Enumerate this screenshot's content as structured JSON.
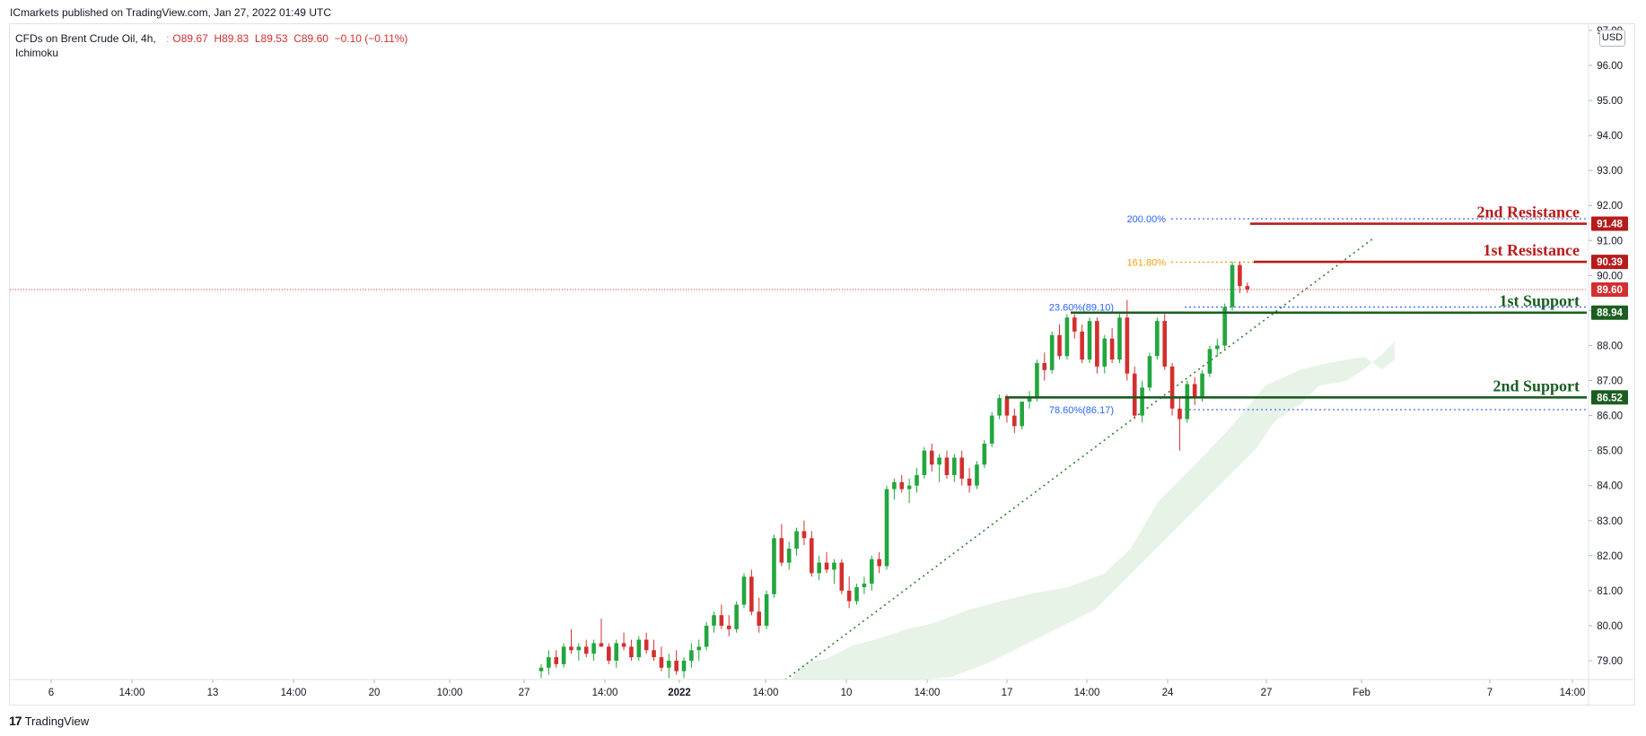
{
  "header": {
    "published": "ICmarkets published on TradingView.com, Jan 27, 2022 01:49 UTC"
  },
  "legend": {
    "symbol_line1": "CFDs on Brent Crude Oil, 4h,",
    "symbol_line2": "Ichimoku",
    "open": "O89.67",
    "high": "H89.83",
    "low": "L89.53",
    "close": "C89.60",
    "change": "−0.10 (−0.11%)"
  },
  "currency": "USD",
  "footer": {
    "brand": "TradingView",
    "logo_text": "17"
  },
  "colors": {
    "up": "#22a63e",
    "down": "#d32f2f",
    "resistance": "#b71c1c",
    "support": "#1b5e20",
    "fib_blue": "#2962ff",
    "fib_orange": "#f59e0b",
    "cloud": "#e6f3e6",
    "trendline": "#2e7d32"
  },
  "chart_data": {
    "type": "candlestick",
    "x_tick_labels": [
      "6",
      "14:00",
      "13",
      "14:00",
      "20",
      "10:00",
      "27",
      "14:00",
      "2022",
      "14:00",
      "10",
      "14:00",
      "17",
      "14:00",
      "24",
      "27",
      "Feb",
      "7",
      "14:00"
    ],
    "y_tick_labels": [
      "79.00",
      "80.00",
      "81.00",
      "82.00",
      "83.00",
      "84.00",
      "85.00",
      "86.00",
      "87.00",
      "88.00",
      "89.00",
      "90.00",
      "91.00",
      "92.00",
      "93.00",
      "94.00",
      "95.00",
      "96.00",
      "97.00"
    ],
    "ylim": [
      78.5,
      97.2
    ],
    "last_price": 89.6,
    "last_price_label": "89.60",
    "levels": [
      {
        "name": "2nd Resistance",
        "value": 91.48,
        "label": "91.48",
        "kind": "resistance"
      },
      {
        "name": "1st Resistance",
        "value": 90.39,
        "label": "90.39",
        "kind": "resistance"
      },
      {
        "name": "1st Support",
        "value": 88.94,
        "label": "88.94",
        "kind": "support"
      },
      {
        "name": "2nd Support",
        "value": 86.52,
        "label": "86.52",
        "kind": "support"
      }
    ],
    "fib_levels": [
      {
        "label": "200.00%",
        "value": 91.62,
        "color": "blue"
      },
      {
        "label": "161.80%",
        "value": 90.38,
        "color": "orange"
      },
      {
        "label": "23.60%(89.10)",
        "value": 89.1,
        "color": "blue"
      },
      {
        "label": "78.60%(86.17)",
        "value": 86.17,
        "color": "blue"
      }
    ],
    "candles": [
      [
        78.7,
        78.9,
        78.5,
        78.8
      ],
      [
        78.8,
        79.3,
        78.6,
        79.1
      ],
      [
        79.1,
        79.3,
        78.8,
        78.9
      ],
      [
        78.9,
        79.5,
        78.8,
        79.4
      ],
      [
        79.4,
        79.9,
        79.2,
        79.3
      ],
      [
        79.3,
        79.5,
        79.0,
        79.4
      ],
      [
        79.4,
        79.6,
        79.1,
        79.2
      ],
      [
        79.2,
        79.6,
        79.0,
        79.5
      ],
      [
        79.5,
        80.2,
        79.4,
        79.4
      ],
      [
        79.4,
        79.5,
        78.9,
        79.0
      ],
      [
        79.0,
        79.6,
        78.8,
        79.5
      ],
      [
        79.5,
        79.8,
        79.3,
        79.4
      ],
      [
        79.4,
        79.6,
        79.0,
        79.1
      ],
      [
        79.1,
        79.7,
        79.0,
        79.6
      ],
      [
        79.6,
        79.8,
        79.2,
        79.3
      ],
      [
        79.3,
        79.6,
        79.0,
        79.1
      ],
      [
        79.1,
        79.4,
        78.7,
        78.8
      ],
      [
        78.8,
        79.2,
        78.5,
        79.0
      ],
      [
        79.0,
        79.3,
        78.6,
        78.7
      ],
      [
        78.7,
        79.1,
        78.5,
        79.0
      ],
      [
        79.0,
        79.5,
        78.8,
        79.3
      ],
      [
        79.3,
        79.6,
        79.0,
        79.4
      ],
      [
        79.4,
        80.1,
        79.3,
        80.0
      ],
      [
        80.0,
        80.4,
        79.8,
        80.3
      ],
      [
        80.3,
        80.6,
        79.9,
        80.0
      ],
      [
        80.0,
        80.3,
        79.7,
        79.9
      ],
      [
        79.9,
        80.7,
        79.8,
        80.6
      ],
      [
        80.6,
        81.5,
        80.5,
        81.4
      ],
      [
        81.4,
        81.6,
        80.3,
        80.4
      ],
      [
        80.4,
        80.8,
        79.8,
        80.0
      ],
      [
        80.0,
        81.0,
        79.9,
        80.9
      ],
      [
        80.9,
        82.6,
        80.8,
        82.5
      ],
      [
        82.5,
        82.9,
        81.7,
        81.8
      ],
      [
        81.8,
        82.4,
        81.6,
        82.2
      ],
      [
        82.2,
        82.8,
        82.0,
        82.7
      ],
      [
        82.7,
        83.0,
        82.3,
        82.5
      ],
      [
        82.5,
        82.7,
        81.4,
        81.5
      ],
      [
        81.5,
        82.0,
        81.3,
        81.8
      ],
      [
        81.8,
        82.1,
        81.5,
        81.6
      ],
      [
        81.6,
        81.9,
        81.2,
        81.8
      ],
      [
        81.8,
        81.9,
        80.9,
        81.0
      ],
      [
        81.0,
        81.4,
        80.5,
        80.7
      ],
      [
        80.7,
        81.2,
        80.6,
        81.1
      ],
      [
        81.1,
        81.4,
        80.9,
        81.2
      ],
      [
        81.2,
        82.0,
        81.0,
        81.9
      ],
      [
        81.9,
        82.1,
        81.5,
        81.7
      ],
      [
        81.7,
        84.0,
        81.6,
        83.9
      ],
      [
        83.9,
        84.2,
        83.6,
        84.1
      ],
      [
        84.1,
        84.3,
        83.8,
        83.9
      ],
      [
        83.9,
        84.2,
        83.5,
        84.0
      ],
      [
        84.0,
        84.5,
        83.8,
        84.3
      ],
      [
        84.3,
        85.1,
        84.2,
        85.0
      ],
      [
        85.0,
        85.2,
        84.4,
        84.6
      ],
      [
        84.6,
        84.9,
        84.1,
        84.8
      ],
      [
        84.8,
        85.0,
        84.2,
        84.3
      ],
      [
        84.3,
        84.9,
        84.1,
        84.8
      ],
      [
        84.8,
        85.0,
        84.0,
        84.2
      ],
      [
        84.2,
        84.5,
        83.8,
        84.0
      ],
      [
        84.0,
        84.7,
        83.9,
        84.6
      ],
      [
        84.6,
        85.3,
        84.5,
        85.2
      ],
      [
        85.2,
        86.1,
        85.1,
        86.0
      ],
      [
        86.0,
        86.6,
        85.9,
        86.5
      ],
      [
        86.5,
        86.6,
        85.8,
        86.0
      ],
      [
        86.0,
        86.2,
        85.5,
        85.7
      ],
      [
        85.7,
        86.4,
        85.6,
        86.4
      ],
      [
        86.4,
        86.7,
        86.2,
        86.5
      ],
      [
        86.5,
        87.6,
        86.4,
        87.5
      ],
      [
        87.5,
        87.8,
        87.0,
        87.3
      ],
      [
        87.3,
        88.4,
        87.2,
        88.3
      ],
      [
        88.3,
        88.6,
        87.6,
        87.7
      ],
      [
        87.7,
        88.9,
        87.6,
        88.8
      ],
      [
        88.8,
        88.9,
        88.2,
        88.4
      ],
      [
        88.4,
        88.6,
        87.5,
        87.6
      ],
      [
        87.6,
        88.8,
        87.5,
        88.7
      ],
      [
        88.7,
        88.8,
        87.2,
        87.4
      ],
      [
        87.4,
        88.3,
        87.2,
        88.2
      ],
      [
        88.2,
        88.5,
        87.5,
        87.6
      ],
      [
        87.6,
        88.9,
        87.5,
        88.8
      ],
      [
        88.8,
        89.3,
        87.0,
        87.2
      ],
      [
        87.2,
        87.4,
        85.9,
        86.0
      ],
      [
        86.0,
        87.0,
        85.8,
        86.8
      ],
      [
        86.8,
        87.8,
        86.7,
        87.7
      ],
      [
        87.7,
        88.8,
        87.6,
        88.7
      ],
      [
        88.7,
        88.9,
        87.3,
        87.4
      ],
      [
        87.4,
        87.5,
        86.0,
        86.2
      ],
      [
        86.2,
        86.5,
        85.0,
        85.9
      ],
      [
        85.9,
        87.0,
        85.8,
        86.9
      ],
      [
        86.9,
        87.1,
        86.3,
        86.5
      ],
      [
        86.5,
        87.3,
        86.4,
        87.2
      ],
      [
        87.2,
        88.0,
        87.1,
        87.9
      ],
      [
        87.9,
        88.2,
        87.7,
        88.0
      ],
      [
        88.0,
        89.2,
        87.9,
        89.1
      ],
      [
        89.1,
        90.4,
        89.0,
        90.3
      ],
      [
        90.3,
        90.4,
        89.5,
        89.7
      ],
      [
        89.7,
        89.8,
        89.5,
        89.6
      ]
    ]
  }
}
